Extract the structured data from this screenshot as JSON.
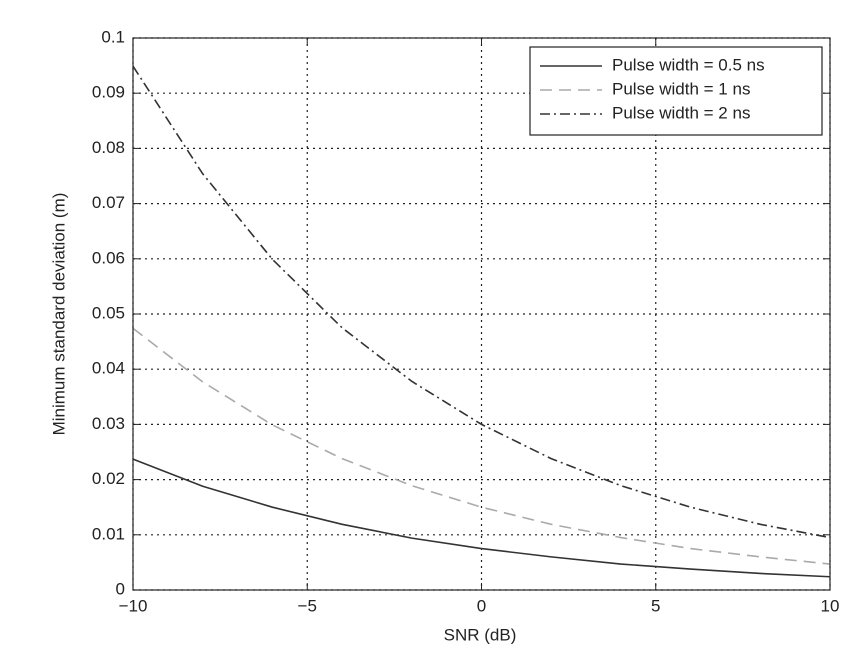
{
  "chart_data": {
    "type": "line",
    "x_label": "SNR (dB)",
    "y_label": "Minimum standard deviation (m)",
    "x": [
      -10,
      -8,
      -6,
      -4,
      -2,
      0,
      2,
      4,
      6,
      8,
      10
    ],
    "series": [
      {
        "name": "Pulse width = 0.5 ns",
        "color": "#333333",
        "style": "solid",
        "values": [
          0.0237,
          0.0188,
          0.015,
          0.0119,
          0.0094,
          0.0075,
          0.006,
          0.0047,
          0.0038,
          0.003,
          0.0024
        ]
      },
      {
        "name": "Pulse width = 1 ns",
        "color": "#aaaaaa",
        "style": "dashed",
        "values": [
          0.0474,
          0.0377,
          0.0299,
          0.0238,
          0.0189,
          0.015,
          0.0119,
          0.0095,
          0.0075,
          0.006,
          0.0047
        ]
      },
      {
        "name": "Pulse width = 2 ns",
        "color": "#333333",
        "style": "dashdot",
        "values": [
          0.0949,
          0.0754,
          0.0599,
          0.0475,
          0.0378,
          0.03,
          0.0238,
          0.0189,
          0.015,
          0.0119,
          0.0095
        ]
      }
    ],
    "xlim": [
      -10,
      10
    ],
    "xticks": [
      {
        "value": -10,
        "label": "−10"
      },
      {
        "value": -5,
        "label": "−5"
      },
      0,
      5,
      10
    ],
    "ylim": [
      0,
      0.1
    ],
    "yticks": [
      0,
      0.01,
      0.02,
      0.03,
      0.04,
      0.05,
      0.06,
      0.07,
      0.08,
      0.09,
      0.1
    ],
    "grid": true,
    "legend": "upper right"
  }
}
